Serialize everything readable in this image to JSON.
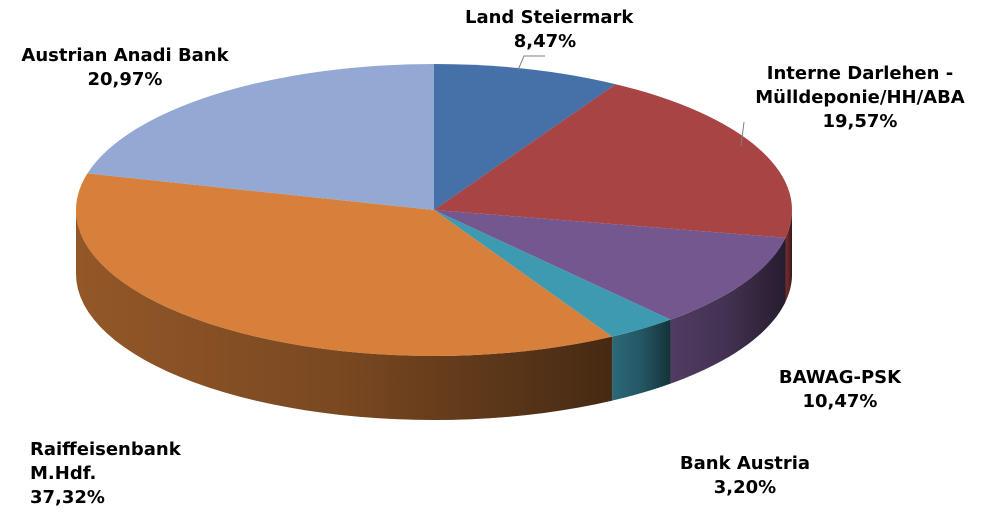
{
  "chart_data": {
    "type": "pie",
    "style": "3d",
    "legend": "none",
    "slices": [
      {
        "label_lines": [
          "Land Steiermark"
        ],
        "value_label": "8,47%",
        "value": 8.47,
        "color": "#4670A8"
      },
      {
        "label_lines": [
          "Interne Darlehen -",
          "Mülldeponie/HH/ABA"
        ],
        "value_label": "19,57%",
        "value": 19.57,
        "color": "#A84444"
      },
      {
        "label_lines": [
          "BAWAG-PSK"
        ],
        "value_label": "10,47%",
        "value": 10.47,
        "color": "#74578F"
      },
      {
        "label_lines": [
          "Bank Austria"
        ],
        "value_label": "3,20%",
        "value": 3.2,
        "color": "#3E9AB1"
      },
      {
        "label_lines": [
          "Raiffeisenbank",
          "M.Hdf."
        ],
        "value_label": "37,32%",
        "value": 37.32,
        "color": "#D7803B"
      },
      {
        "label_lines": [
          "Austrian Anadi Bank"
        ],
        "value_label": "20,97%",
        "value": 20.97,
        "color": "#93A8D3"
      }
    ]
  }
}
